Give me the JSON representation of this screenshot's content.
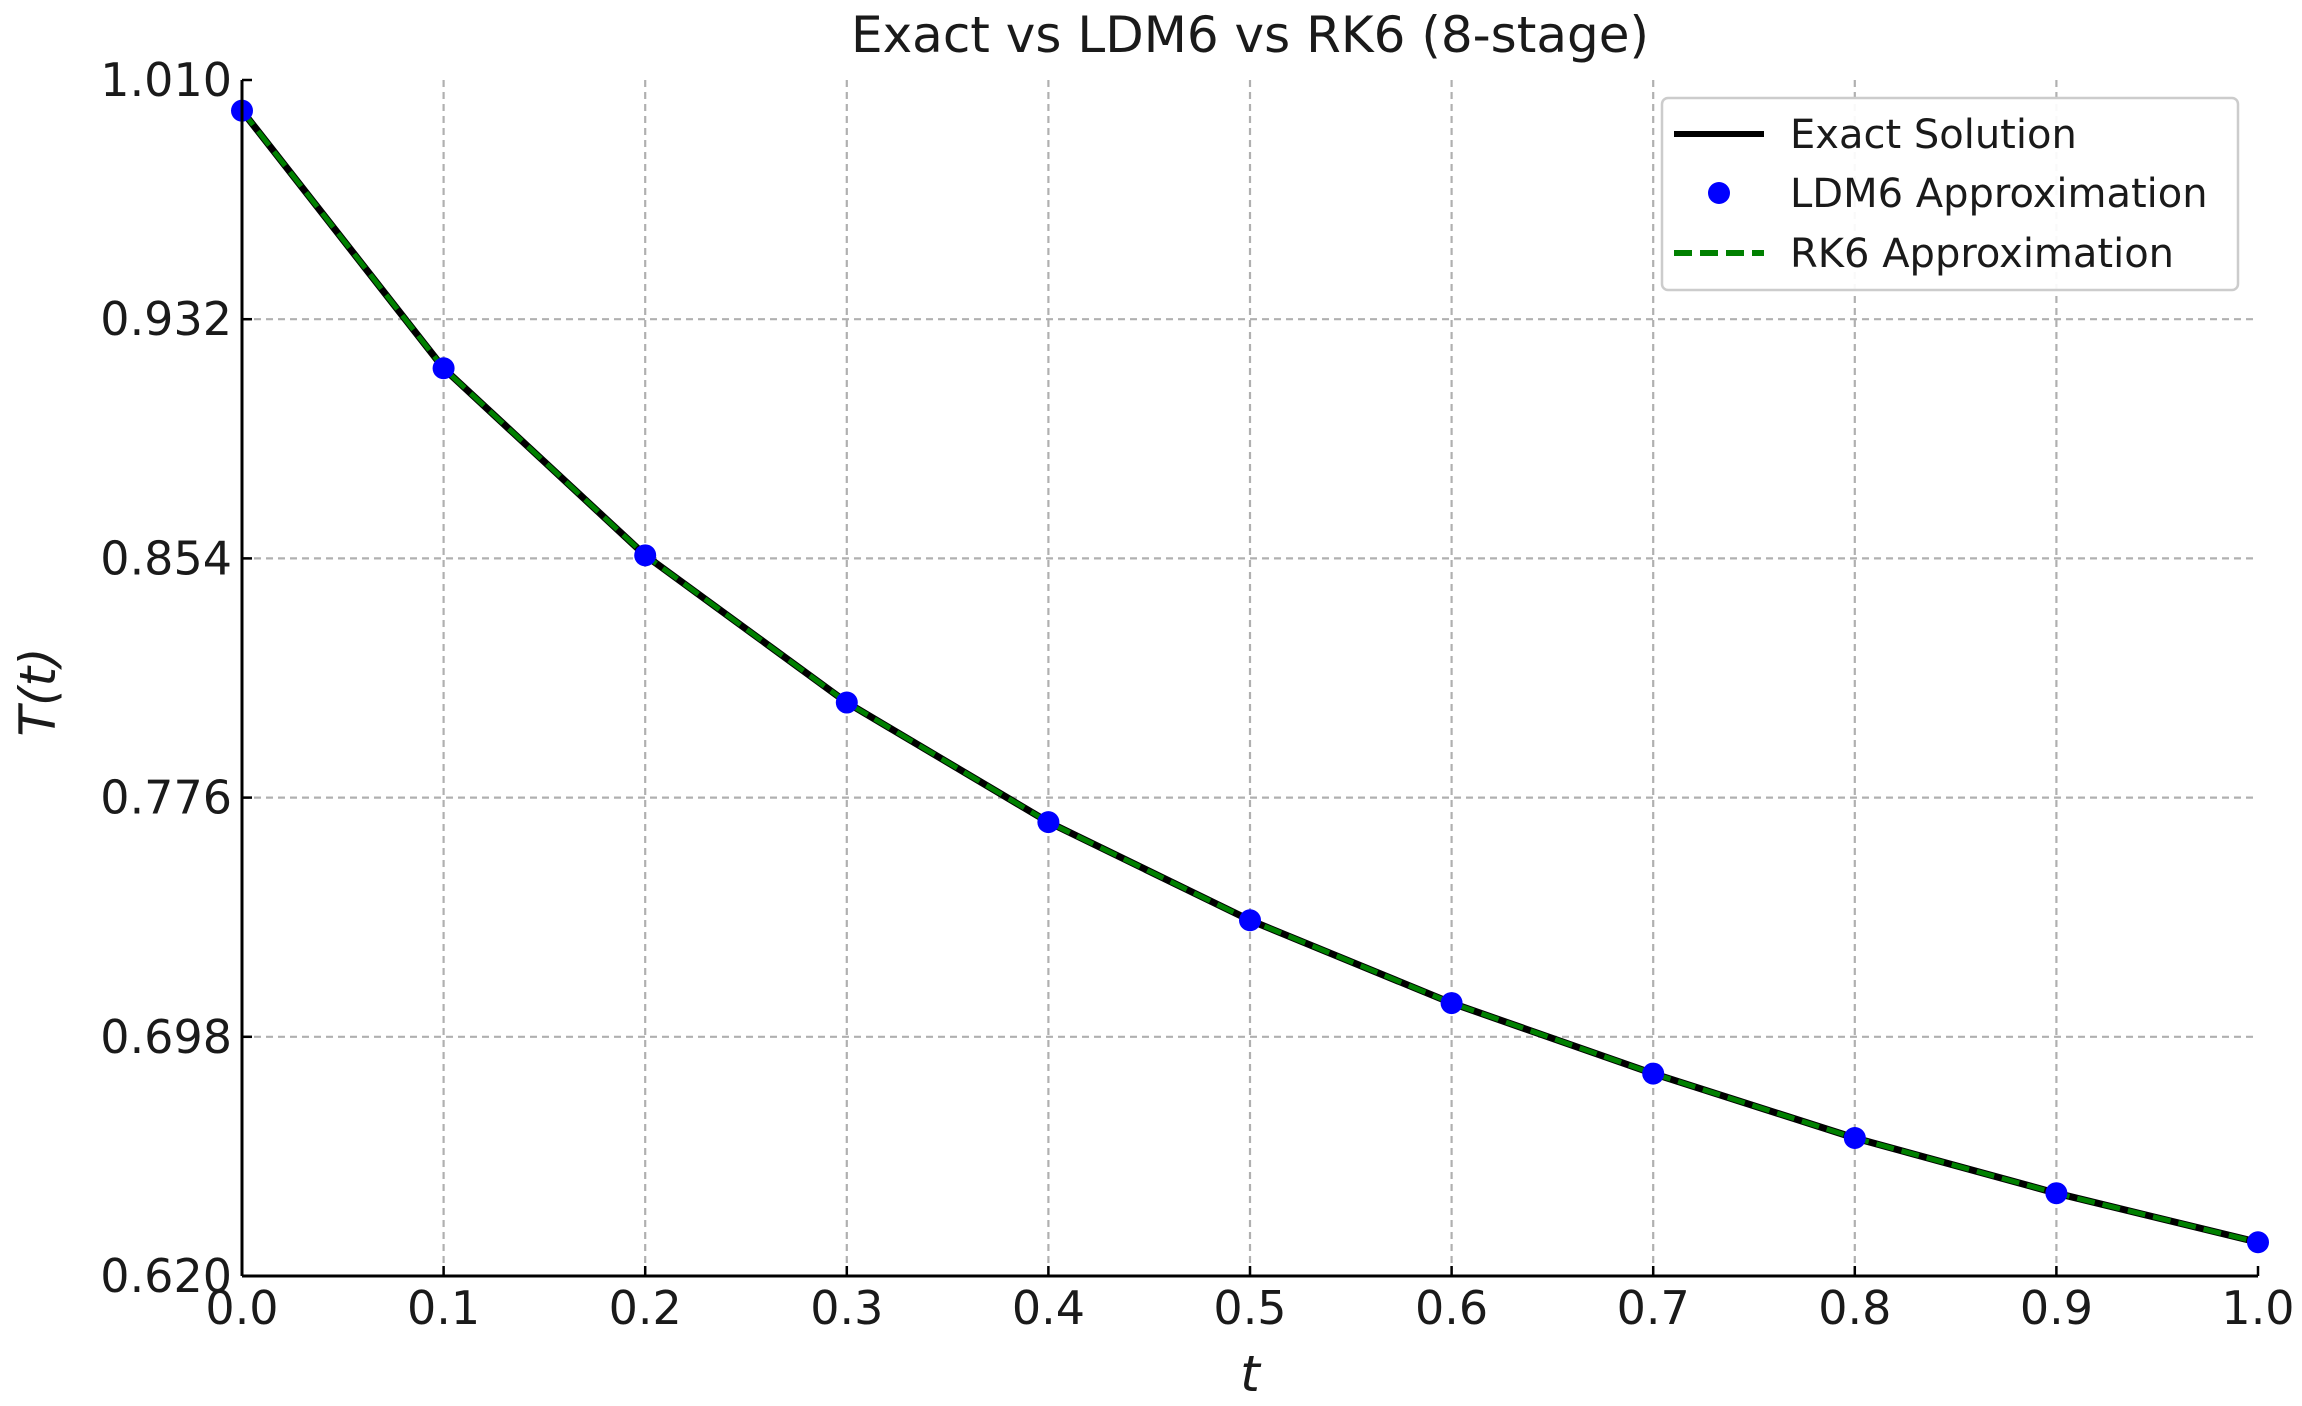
{
  "chart_data": {
    "type": "line",
    "title": "Exact vs LDM6 vs RK6 (8-stage)",
    "xlabel": "t",
    "ylabel": "T(t)",
    "xlim": [
      0.0,
      1.0
    ],
    "ylim": [
      0.62,
      1.01
    ],
    "x_ticks": [
      "0.0",
      "0.1",
      "0.2",
      "0.3",
      "0.4",
      "0.5",
      "0.6",
      "0.7",
      "0.8",
      "0.9",
      "1.0"
    ],
    "y_ticks": [
      "0.620",
      "0.698",
      "0.776",
      "0.854",
      "0.932",
      "1.010"
    ],
    "grid": true,
    "legend_position": "top-right",
    "x": [
      0.0,
      0.1,
      0.2,
      0.3,
      0.4,
      0.5,
      0.6,
      0.7,
      0.8,
      0.9,
      1.0
    ],
    "series": [
      {
        "name": "Exact Solution",
        "style": "solid-line",
        "color": "#000000",
        "values": [
          1.0,
          0.916,
          0.855,
          0.807,
          0.768,
          0.736,
          0.709,
          0.686,
          0.665,
          0.647,
          0.631
        ]
      },
      {
        "name": "LDM6 Approximation",
        "style": "markers",
        "color": "#0000ff",
        "values": [
          1.0,
          0.916,
          0.855,
          0.807,
          0.768,
          0.736,
          0.709,
          0.686,
          0.665,
          0.647,
          0.631
        ]
      },
      {
        "name": "RK6 Approximation",
        "style": "dashed-line",
        "color": "#008000",
        "values": [
          1.0,
          0.916,
          0.855,
          0.807,
          0.768,
          0.736,
          0.709,
          0.686,
          0.665,
          0.647,
          0.631
        ]
      }
    ]
  }
}
